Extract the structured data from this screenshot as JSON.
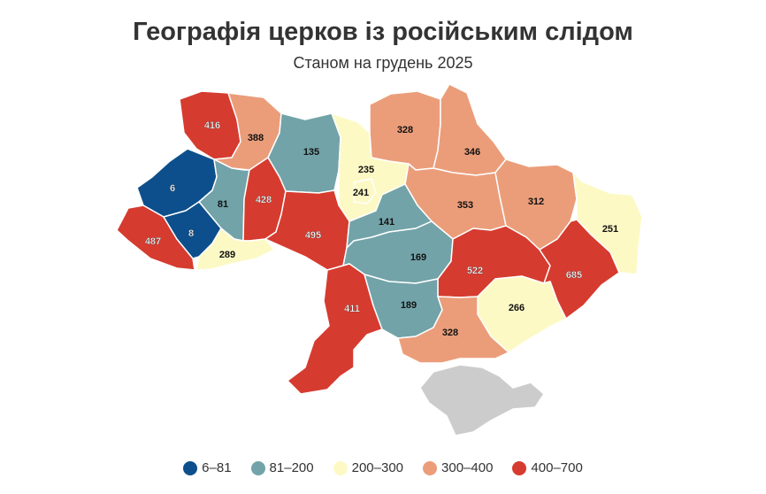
{
  "title": "Географія церков із російським слідом",
  "subtitle": "Станом на грудень 2025",
  "legend": [
    {
      "label": "6–81",
      "color": "#0d4f8c"
    },
    {
      "label": "81–200",
      "color": "#72a3a8"
    },
    {
      "label": "200–300",
      "color": "#fdf9c5"
    },
    {
      "label": "300–400",
      "color": "#eb9d7a"
    },
    {
      "label": "400–700",
      "color": "#d63b2f"
    }
  ],
  "no_data_color": "#cccccc",
  "regions": [
    {
      "id": "volyn",
      "value": "416",
      "bin": 4
    },
    {
      "id": "rivne",
      "value": "388",
      "bin": 3
    },
    {
      "id": "zhytomyr",
      "value": "135",
      "bin": 1
    },
    {
      "id": "kyiv-oblast",
      "value": "235",
      "bin": 2
    },
    {
      "id": "kyiv-city",
      "value": "241",
      "bin": 2
    },
    {
      "id": "chernihiv",
      "value": "328",
      "bin": 3
    },
    {
      "id": "sumy",
      "value": "346",
      "bin": 3
    },
    {
      "id": "poltava",
      "value": "353",
      "bin": 3
    },
    {
      "id": "kharkiv",
      "value": "312",
      "bin": 3
    },
    {
      "id": "luhansk",
      "value": "251",
      "bin": 2
    },
    {
      "id": "lviv",
      "value": "6",
      "bin": 0
    },
    {
      "id": "ternopil",
      "value": "81",
      "bin": 1
    },
    {
      "id": "khmelnytskyi",
      "value": "428",
      "bin": 4
    },
    {
      "id": "vinnytsia",
      "value": "495",
      "bin": 4
    },
    {
      "id": "cherkasy",
      "value": "141",
      "bin": 1
    },
    {
      "id": "kirovohrad",
      "value": "169",
      "bin": 1
    },
    {
      "id": "dnipropetrovsk",
      "value": "522",
      "bin": 4
    },
    {
      "id": "donetsk",
      "value": "685",
      "bin": 4
    },
    {
      "id": "zakarpattia",
      "value": "487",
      "bin": 4
    },
    {
      "id": "ivano-frankivsk",
      "value": "8",
      "bin": 0
    },
    {
      "id": "chernivtsi",
      "value": "289",
      "bin": 2
    },
    {
      "id": "odesa",
      "value": "411",
      "bin": 4
    },
    {
      "id": "mykolaiv",
      "value": "189",
      "bin": 1
    },
    {
      "id": "zaporizhzhia",
      "value": "266",
      "bin": 2
    },
    {
      "id": "kherson",
      "value": "328",
      "bin": 3
    },
    {
      "id": "crimea",
      "value": "",
      "bin": -1
    }
  ]
}
